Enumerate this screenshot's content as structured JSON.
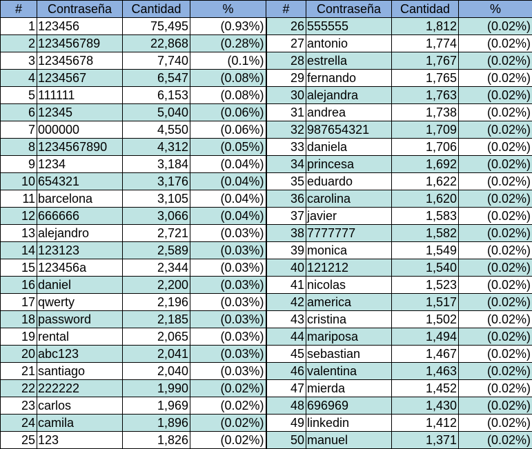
{
  "headers": {
    "left": [
      "#",
      "Contraseña",
      "Cantidad",
      "%"
    ],
    "right": [
      "#",
      "Contraseña",
      "Cantidad",
      "%"
    ]
  },
  "rows_left": [
    {
      "rank": "1",
      "password": "123456",
      "count": "75,495",
      "pct": "(0.93%)"
    },
    {
      "rank": "2",
      "password": "123456789",
      "count": "22,868",
      "pct": "(0.28%)"
    },
    {
      "rank": "3",
      "password": "12345678",
      "count": "7,740",
      "pct": "(0.1%)"
    },
    {
      "rank": "4",
      "password": "1234567",
      "count": "6,547",
      "pct": "(0.08%)"
    },
    {
      "rank": "5",
      "password": "111111",
      "count": "6,153",
      "pct": "(0.08%)"
    },
    {
      "rank": "6",
      "password": "12345",
      "count": "5,040",
      "pct": "(0.06%)"
    },
    {
      "rank": "7",
      "password": "000000",
      "count": "4,550",
      "pct": "(0.06%)"
    },
    {
      "rank": "8",
      "password": "1234567890",
      "count": "4,312",
      "pct": "(0.05%)"
    },
    {
      "rank": "9",
      "password": "1234",
      "count": "3,184",
      "pct": "(0.04%)"
    },
    {
      "rank": "10",
      "password": "654321",
      "count": "3,176",
      "pct": "(0.04%)"
    },
    {
      "rank": "11",
      "password": "barcelona",
      "count": "3,105",
      "pct": "(0.04%)"
    },
    {
      "rank": "12",
      "password": "666666",
      "count": "3,066",
      "pct": "(0.04%)"
    },
    {
      "rank": "13",
      "password": "alejandro",
      "count": "2,721",
      "pct": "(0.03%)"
    },
    {
      "rank": "14",
      "password": "123123",
      "count": "2,589",
      "pct": "(0.03%)"
    },
    {
      "rank": "15",
      "password": "123456a",
      "count": "2,344",
      "pct": "(0.03%)"
    },
    {
      "rank": "16",
      "password": "daniel",
      "count": "2,200",
      "pct": "(0.03%)"
    },
    {
      "rank": "17",
      "password": "qwerty",
      "count": "2,196",
      "pct": "(0.03%)"
    },
    {
      "rank": "18",
      "password": "password",
      "count": "2,185",
      "pct": "(0.03%)"
    },
    {
      "rank": "19",
      "password": "rental",
      "count": "2,065",
      "pct": "(0.03%)"
    },
    {
      "rank": "20",
      "password": "abc123",
      "count": "2,041",
      "pct": "(0.03%)"
    },
    {
      "rank": "21",
      "password": "santiago",
      "count": "2,040",
      "pct": "(0.03%)"
    },
    {
      "rank": "22",
      "password": "222222",
      "count": "1,990",
      "pct": "(0.02%)"
    },
    {
      "rank": "23",
      "password": "carlos",
      "count": "1,969",
      "pct": "(0.02%)"
    },
    {
      "rank": "24",
      "password": "camila",
      "count": "1,896",
      "pct": "(0.02%)"
    },
    {
      "rank": "25",
      "password": "123",
      "count": "1,826",
      "pct": "(0.02%)"
    }
  ],
  "rows_right": [
    {
      "rank": "26",
      "password": "555555",
      "count": "1,812",
      "pct": "(0.02%)"
    },
    {
      "rank": "27",
      "password": "antonio",
      "count": "1,774",
      "pct": "(0.02%)"
    },
    {
      "rank": "28",
      "password": "estrella",
      "count": "1,767",
      "pct": "(0.02%)"
    },
    {
      "rank": "29",
      "password": "fernando",
      "count": "1,765",
      "pct": "(0.02%)"
    },
    {
      "rank": "30",
      "password": "alejandra",
      "count": "1,763",
      "pct": "(0.02%)"
    },
    {
      "rank": "31",
      "password": "andrea",
      "count": "1,738",
      "pct": "(0.02%)"
    },
    {
      "rank": "32",
      "password": "987654321",
      "count": "1,709",
      "pct": "(0.02%)"
    },
    {
      "rank": "33",
      "password": "daniela",
      "count": "1,706",
      "pct": "(0.02%)"
    },
    {
      "rank": "34",
      "password": "princesa",
      "count": "1,692",
      "pct": "(0.02%)"
    },
    {
      "rank": "35",
      "password": "eduardo",
      "count": "1,622",
      "pct": "(0.02%)"
    },
    {
      "rank": "36",
      "password": "carolina",
      "count": "1,620",
      "pct": "(0.02%)"
    },
    {
      "rank": "37",
      "password": "javier",
      "count": "1,583",
      "pct": "(0.02%)"
    },
    {
      "rank": "38",
      "password": "7777777",
      "count": "1,582",
      "pct": "(0.02%)"
    },
    {
      "rank": "39",
      "password": "monica",
      "count": "1,549",
      "pct": "(0.02%)"
    },
    {
      "rank": "40",
      "password": "121212",
      "count": "1,540",
      "pct": "(0.02%)"
    },
    {
      "rank": "41",
      "password": "nicolas",
      "count": "1,523",
      "pct": "(0.02%)"
    },
    {
      "rank": "42",
      "password": "america",
      "count": "1,517",
      "pct": "(0.02%)"
    },
    {
      "rank": "43",
      "password": "cristina",
      "count": "1,502",
      "pct": "(0.02%)"
    },
    {
      "rank": "44",
      "password": "mariposa",
      "count": "1,494",
      "pct": "(0.02%)"
    },
    {
      "rank": "45",
      "password": "sebastian",
      "count": "1,467",
      "pct": "(0.02%)"
    },
    {
      "rank": "46",
      "password": "valentina",
      "count": "1,463",
      "pct": "(0.02%)"
    },
    {
      "rank": "47",
      "password": "mierda",
      "count": "1,452",
      "pct": "(0.02%)"
    },
    {
      "rank": "48",
      "password": "696969",
      "count": "1,430",
      "pct": "(0.02%)"
    },
    {
      "rank": "49",
      "password": "linkedin",
      "count": "1,412",
      "pct": "(0.02%)"
    },
    {
      "rank": "50",
      "password": "manuel",
      "count": "1,371",
      "pct": "(0.02%)"
    }
  ],
  "colors": {
    "header_bg": "#8fb1e0",
    "stripe_bg": "#bfe4e3",
    "border": "#000000"
  }
}
